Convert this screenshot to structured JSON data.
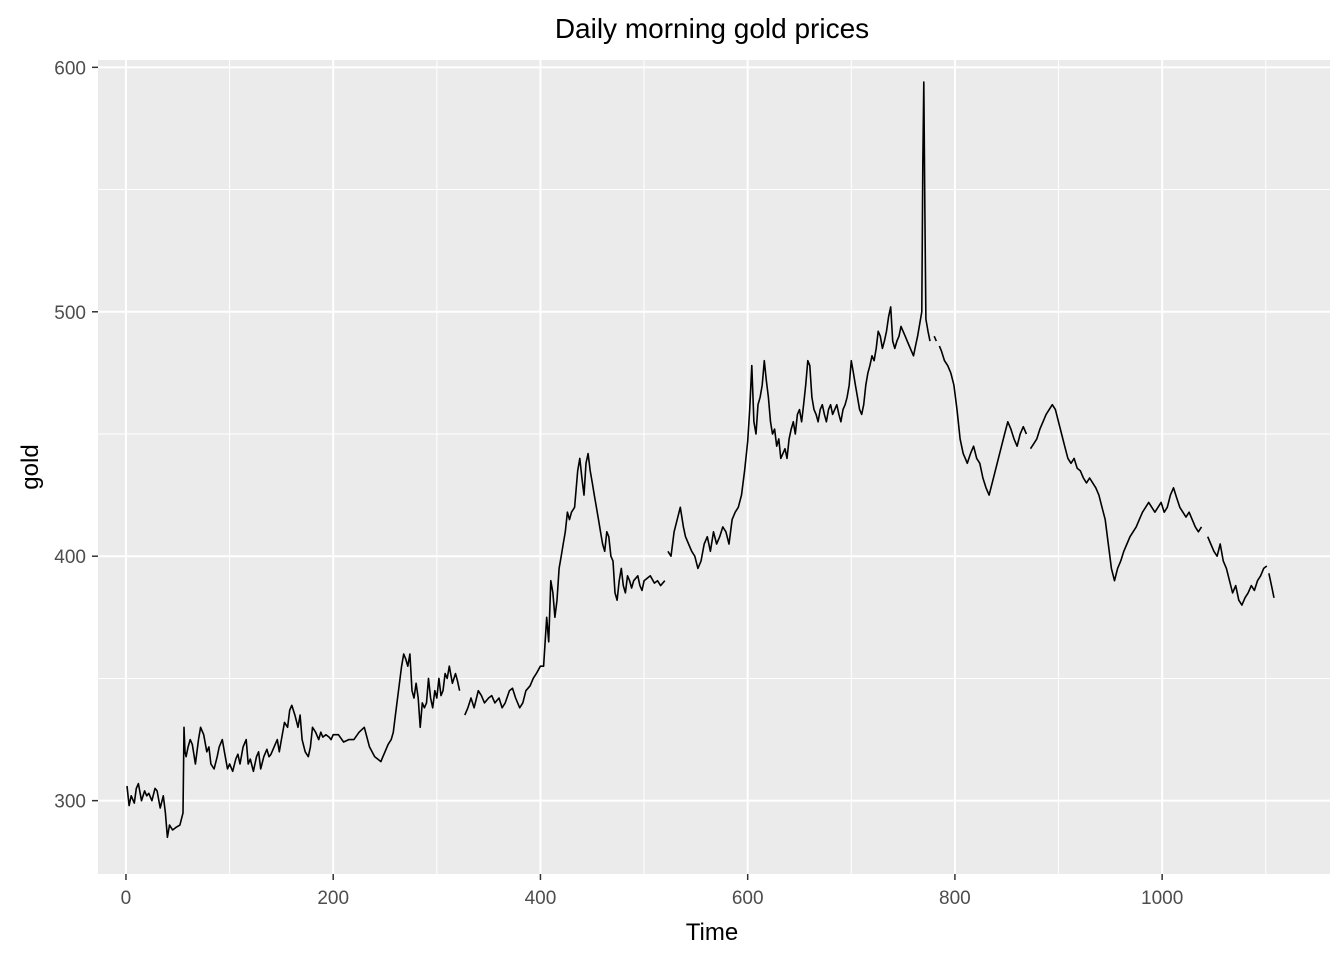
{
  "chart_data": {
    "type": "line",
    "title": "Daily morning gold prices",
    "xlabel": "Time",
    "ylabel": "gold",
    "xlim": [
      -27,
      1162
    ],
    "ylim": [
      270,
      603
    ],
    "x_ticks": [
      0,
      200,
      400,
      600,
      800,
      1000
    ],
    "y_ticks": [
      300,
      400,
      500,
      600
    ],
    "x_minor_ticks": [
      100,
      300,
      500,
      700,
      900,
      1100
    ],
    "y_minor_ticks": [
      350,
      450,
      550
    ],
    "grid": true,
    "background": "#ebebeb",
    "line_color": "#000000",
    "series": [
      {
        "segments": [
          {
            "x": [
              1,
              3,
              5,
              8,
              10,
              12,
              15,
              18,
              20,
              22,
              25,
              28,
              30,
              33,
              36,
              38,
              40,
              42,
              45,
              48,
              52,
              55,
              56,
              57,
              58,
              60,
              62,
              64,
              67,
              70,
              72,
              75,
              78,
              80,
              82,
              85,
              88,
              90,
              93,
              95,
              98,
              100,
              103,
              106,
              108,
              110,
              113,
              116,
              118,
              120,
              123,
              126,
              128,
              130,
              133,
              136,
              138,
              140,
              143,
              146,
              148,
              150,
              153,
              156,
              158,
              160,
              163,
              166,
              168,
              170,
              173,
              176,
              178,
              180,
              183,
              186,
              188,
              190,
              193,
              196,
              198,
              200,
              205,
              210,
              215,
              220,
              225,
              230,
              235,
              240,
              243,
              246,
              248,
              250,
              253,
              256,
              258,
              260,
              263,
              266,
              268,
              270,
              272,
              274,
              276,
              278,
              280,
              282,
              284,
              286,
              288,
              290,
              292,
              294,
              296,
              298,
              300,
              302,
              304,
              306,
              308,
              310,
              312,
              315,
              318,
              320,
              322
            ],
            "y": [
              306,
              298,
              302,
              299,
              305,
              307,
              300,
              304,
              302,
              303,
              300,
              305,
              304,
              297,
              302,
              295,
              285,
              290,
              288,
              289,
              290,
              295,
              330,
              320,
              318,
              322,
              325,
              323,
              315,
              325,
              330,
              327,
              320,
              322,
              315,
              313,
              318,
              322,
              325,
              320,
              313,
              315,
              312,
              317,
              319,
              315,
              322,
              325,
              315,
              317,
              312,
              318,
              320,
              313,
              318,
              321,
              318,
              319,
              322,
              325,
              320,
              325,
              332,
              330,
              337,
              339,
              335,
              330,
              335,
              325,
              320,
              318,
              322,
              330,
              328,
              325,
              328,
              326,
              327,
              326,
              325,
              327,
              327,
              324,
              325,
              325,
              328,
              330,
              322,
              318,
              317,
              316,
              318,
              320,
              323,
              325,
              328,
              335,
              345,
              355,
              360,
              358,
              355,
              360,
              345,
              342,
              348,
              342,
              330,
              340,
              338,
              340,
              350,
              342,
              338,
              345,
              342,
              350,
              343,
              345,
              352,
              350,
              355,
              348,
              352,
              349,
              345
            ]
          },
          {
            "x": [
              327,
              330,
              333,
              336,
              340,
              343,
              346,
              350,
              353,
              356,
              360,
              363,
              366,
              370,
              373,
              376,
              380,
              383,
              386,
              390,
              393,
              396,
              400,
              403,
              406,
              408,
              410,
              412,
              414,
              416,
              418,
              420,
              422,
              424,
              426,
              428,
              430,
              433,
              436,
              438,
              440,
              442,
              444,
              446,
              448,
              450,
              452,
              454,
              456,
              458,
              460,
              462,
              464,
              466,
              468,
              470,
              472,
              474,
              476,
              478,
              480,
              482,
              484,
              486,
              488,
              490,
              492,
              494,
              496,
              498,
              500,
              503,
              506,
              510,
              513,
              516,
              520
            ],
            "y": [
              335,
              338,
              342,
              338,
              345,
              343,
              340,
              342,
              343,
              340,
              342,
              338,
              340,
              345,
              346,
              342,
              338,
              340,
              345,
              347,
              350,
              352,
              355,
              355,
              375,
              365,
              390,
              385,
              375,
              382,
              395,
              400,
              405,
              410,
              418,
              415,
              418,
              420,
              435,
              440,
              432,
              425,
              438,
              442,
              435,
              430,
              425,
              420,
              415,
              410,
              405,
              402,
              410,
              408,
              400,
              398,
              385,
              382,
              390,
              395,
              388,
              385,
              392,
              390,
              387,
              390,
              391,
              392,
              388,
              386,
              390,
              391,
              392,
              389,
              390,
              388,
              390
            ]
          },
          {
            "x": [
              523,
              526,
              529,
              532,
              535,
              538,
              540,
              543,
              546,
              549,
              552,
              555,
              558,
              561,
              564,
              567,
              570,
              573,
              576,
              579,
              582,
              585,
              588,
              591,
              594,
              597,
              600,
              602,
              604,
              606,
              608,
              610,
              612,
              614,
              616,
              618,
              620,
              622,
              624,
              626,
              628,
              630,
              632,
              634,
              636,
              638,
              640,
              642,
              644,
              646,
              648,
              650,
              652,
              654,
              656,
              658,
              660,
              662,
              664,
              666,
              668,
              670,
              672,
              674,
              676,
              678,
              680,
              682,
              684,
              686,
              688,
              690,
              692,
              694,
              696,
              698,
              700,
              702,
              704,
              706,
              708,
              710,
              712,
              714,
              716,
              718,
              720,
              722,
              724,
              726,
              728,
              730,
              732,
              734,
              736,
              738,
              740,
              742,
              744,
              746,
              748,
              750,
              752,
              754,
              756,
              758,
              760,
              762,
              764,
              766,
              768,
              769,
              770,
              771,
              772,
              774,
              776
            ],
            "y": [
              402,
              400,
              410,
              415,
              420,
              412,
              408,
              405,
              402,
              400,
              395,
              398,
              405,
              408,
              402,
              410,
              405,
              408,
              412,
              410,
              405,
              415,
              418,
              420,
              425,
              435,
              447,
              460,
              478,
              455,
              450,
              462,
              465,
              470,
              480,
              472,
              465,
              455,
              450,
              452,
              445,
              448,
              440,
              442,
              444,
              440,
              448,
              452,
              455,
              450,
              458,
              460,
              455,
              462,
              470,
              480,
              478,
              465,
              460,
              458,
              455,
              460,
              462,
              458,
              455,
              460,
              462,
              458,
              460,
              462,
              458,
              455,
              460,
              462,
              465,
              470,
              480,
              475,
              470,
              465,
              460,
              458,
              462,
              470,
              475,
              478,
              482,
              480,
              485,
              492,
              490,
              485,
              488,
              492,
              498,
              502,
              488,
              485,
              488,
              490,
              494,
              492,
              490,
              488,
              486,
              484,
              482,
              486,
              490,
              495,
              500,
              560,
              594,
              540,
              497,
              492,
              488
            ]
          },
          {
            "x": [
              780,
              782
            ],
            "y": [
              490,
              488
            ]
          },
          {
            "x": [
              785,
              787,
              790,
              793,
              796,
              799,
              802,
              805,
              808,
              810,
              812,
              815,
              818,
              821,
              824,
              827,
              830,
              833,
              836,
              839,
              842,
              845,
              848,
              851,
              854,
              857,
              860,
              863,
              866,
              869
            ],
            "y": [
              486,
              484,
              480,
              478,
              475,
              470,
              460,
              448,
              442,
              440,
              438,
              442,
              445,
              440,
              438,
              432,
              428,
              425,
              430,
              435,
              440,
              445,
              450,
              455,
              452,
              448,
              445,
              450,
              453,
              450
            ]
          },
          {
            "x": [
              873,
              876,
              879,
              882,
              885,
              888,
              891,
              894,
              897,
              900,
              903,
              906,
              909,
              912,
              915,
              918,
              921,
              924,
              927,
              930,
              933,
              936,
              939,
              942,
              945,
              948,
              951,
              954,
              957,
              960,
              963,
              966,
              969,
              972,
              975,
              978,
              981,
              984,
              987,
              990,
              993,
              996,
              999,
              1002,
              1005,
              1008,
              1011,
              1014,
              1017,
              1020,
              1023,
              1026,
              1029,
              1032,
              1035,
              1038
            ],
            "y": [
              444,
              446,
              448,
              452,
              455,
              458,
              460,
              462,
              460,
              455,
              450,
              445,
              440,
              438,
              440,
              436,
              435,
              432,
              430,
              432,
              430,
              428,
              425,
              420,
              415,
              405,
              395,
              390,
              395,
              398,
              402,
              405,
              408,
              410,
              412,
              415,
              418,
              420,
              422,
              420,
              418,
              420,
              422,
              418,
              420,
              425,
              428,
              424,
              420,
              418,
              416,
              418,
              415,
              412,
              410,
              412
            ]
          },
          {
            "x": [
              1044,
              1047,
              1050,
              1053,
              1056,
              1059,
              1062,
              1065,
              1068,
              1071,
              1074,
              1077,
              1080,
              1083,
              1086,
              1089,
              1092,
              1095,
              1098,
              1101
            ],
            "y": [
              408,
              405,
              402,
              400,
              405,
              398,
              395,
              390,
              385,
              388,
              382,
              380,
              383,
              385,
              388,
              386,
              390,
              392,
              395,
              396
            ]
          },
          {
            "x": [
              1103,
              1106,
              1108
            ],
            "y": [
              393,
              387,
              383
            ]
          }
        ]
      }
    ]
  }
}
